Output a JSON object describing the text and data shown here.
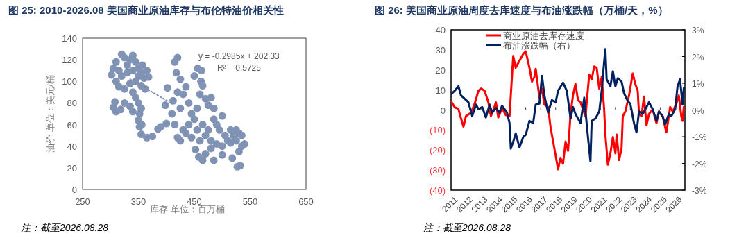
{
  "chart_data": [
    {
      "type": "scatter",
      "title": "图 25: 2010-2026.08 美国商业原油库存与布伦特油价相关性",
      "xlabel": "库存 单位：百万桶",
      "ylabel": "油价 单位：美元/桶",
      "xlim": [
        250,
        650
      ],
      "xticks": [
        250,
        350,
        450,
        550,
        650
      ],
      "ylim": [
        0,
        140
      ],
      "yticks": [
        0,
        20,
        40,
        60,
        80,
        100,
        120,
        140
      ],
      "series": [
        {
          "marker": "circle",
          "color": "#8093b5",
          "x": [
            302,
            305,
            310,
            315,
            320,
            325,
            330,
            335,
            340,
            345,
            350,
            355,
            360,
            365,
            368,
            362,
            355,
            345,
            335,
            325,
            315,
            310,
            320,
            330,
            340,
            350,
            357,
            305,
            310,
            308,
            318,
            325,
            335,
            340,
            345,
            340,
            350,
            355,
            352,
            350,
            352,
            356,
            355,
            365,
            375,
            385,
            390,
            400,
            398,
            402,
            415,
            420,
            418,
            425,
            420,
            412,
            410,
            415,
            420,
            425,
            430,
            425,
            430,
            435,
            440,
            445,
            440,
            435,
            450,
            456,
            463,
            462,
            465,
            460,
            470,
            475,
            480,
            485,
            450,
            455,
            460,
            465,
            470,
            475,
            480,
            485,
            490,
            495,
            500,
            505,
            510,
            515,
            520,
            525,
            530,
            535,
            540,
            535,
            525,
            515,
            500,
            490,
            480,
            485,
            470,
            465,
            458,
            452,
            500,
            518,
            527,
            532,
            530,
            445,
            455
          ],
          "values": [
            106,
            112,
            118,
            110,
            125,
            122,
            115,
            120,
            124,
            118,
            112,
            108,
            103,
            110,
            104,
            93,
            96,
            100,
            98,
            93,
            95,
            100,
            105,
            108,
            110,
            105,
            115,
            76,
            72,
            81,
            74,
            80,
            77,
            72,
            85,
            90,
            80,
            75,
            70,
            64,
            58,
            60,
            51,
            48,
            49,
            56,
            58,
            61,
            78,
            94,
            118,
            122,
            108,
            102,
            90,
            82,
            70,
            60,
            48,
            45,
            55,
            75,
            88,
            95,
            80,
            70,
            60,
            52,
            105,
            112,
            110,
            100,
            96,
            88,
            84,
            78,
            85,
            75,
            65,
            55,
            45,
            60,
            50,
            55,
            45,
            65,
            60,
            55,
            68,
            50,
            45,
            55,
            50,
            55,
            52,
            50,
            42,
            40,
            45,
            43,
            40,
            42,
            38,
            27,
            33,
            27,
            30,
            37,
            32,
            29,
            21,
            22,
            35,
            48,
            75
          ]
        },
        {
          "type": "line",
          "line_style": "dotted",
          "color": "#7f8fb0",
          "x": [
            335,
            405
          ],
          "values": [
            102,
            81
          ]
        }
      ],
      "annotations": [
        "y = -0.2985x + 202.33",
        "R² = 0.5725",
        "注：截至2026.08.28"
      ]
    },
    {
      "type": "line",
      "title": "图 26: 美国商业原油周度去库速度与布油涨跌幅（万桶/天，%）",
      "xlim": [
        "2011-01-01",
        "2026-08-28"
      ],
      "xticks": [
        "2011",
        "2012",
        "2013",
        "2014",
        "2015",
        "2016",
        "2017",
        "2018",
        "2019",
        "2020",
        "2021",
        "2022",
        "2023",
        "2024",
        "2025",
        "2026"
      ],
      "ylim": [
        -40,
        40
      ],
      "yticks": [
        {
          "value": -40,
          "label": "(40)"
        },
        {
          "value": -30,
          "label": "(30)"
        },
        {
          "value": -20,
          "label": "(20)"
        },
        {
          "value": -10,
          "label": "(10)"
        },
        0,
        10,
        20,
        30,
        40
      ],
      "y2lim": [
        -3,
        3
      ],
      "y2ticks": [
        {
          "value": -3,
          "label": "-3%"
        },
        {
          "value": -2,
          "label": "-2%"
        },
        {
          "value": -1,
          "label": "-1%"
        },
        {
          "value": 0,
          "label": "0%"
        },
        {
          "value": 1,
          "label": "1%"
        },
        {
          "value": 2,
          "label": "2%"
        },
        {
          "value": 3,
          "label": "3%"
        }
      ],
      "legend": "top left",
      "series": [
        {
          "name": "商业原油去库存速度",
          "color": "#ff0000",
          "x": [
            "2011-01",
            "2011-04",
            "2011-07",
            "2011-08",
            "2011-11",
            "2012-01",
            "2012-05",
            "2012-08",
            "2012-11",
            "2013-01",
            "2013-04",
            "2013-07",
            "2013-09",
            "2013-11",
            "2014-01",
            "2014-03",
            "2014-06",
            "2014-09",
            "2014-12",
            "2015-01",
            "2015-03",
            "2015-05",
            "2015-08",
            "2015-11",
            "2016-01",
            "2016-04",
            "2016-06",
            "2016-08",
            "2016-09",
            "2016-12",
            "2017-02",
            "2017-04",
            "2017-07",
            "2017-09",
            "2018-01",
            "2018-03",
            "2018-05",
            "2018-07",
            "2018-09",
            "2018-11",
            "2019-01",
            "2019-03",
            "2019-05",
            "2019-07",
            "2019-09",
            "2020-01",
            "2020-04",
            "2020-06",
            "2020-08",
            "2020-10",
            "2020-12",
            "2021-02",
            "2021-04",
            "2021-05",
            "2021-07",
            "2021-09",
            "2021-11",
            "2022-01",
            "2022-02",
            "2022-04",
            "2022-06",
            "2022-07",
            "2022-09",
            "2022-12",
            "2023-03",
            "2023-05",
            "2023-07",
            "2023-08",
            "2023-10",
            "2023-12",
            "2024-02",
            "2024-04",
            "2024-07",
            "2024-10",
            "2024-12",
            "2025-03",
            "2025-06",
            "2025-09",
            "2025-11",
            "2026-02",
            "2026-04",
            "2026-06",
            "2026-07",
            "2026-08"
          ],
          "values": [
            4.4,
            1.3,
            0.6,
            -2,
            -8.3,
            -3,
            -1.4,
            3.2,
            9.6,
            10.7,
            9.6,
            3.8,
            -3,
            -0.2,
            3.8,
            -3.7,
            0.9,
            -2.5,
            -3.1,
            7.3,
            26.9,
            21.1,
            24.6,
            28,
            29.2,
            21.1,
            14.2,
            16.5,
            20.5,
            6.1,
            10.7,
            2.7,
            1.5,
            -8.9,
            -22.7,
            -29.6,
            -23.9,
            -26.8,
            -15.8,
            -20.4,
            -2,
            7.3,
            13,
            5,
            3.8,
            -3.1,
            17.6,
            15.3,
            21.7,
            21.1,
            10.7,
            16.5,
            0.3,
            -12.3,
            -27.3,
            -21.6,
            -13.5,
            -21.6,
            -12.3,
            -25,
            -19.3,
            -3.1,
            -0.8,
            7.3,
            18.2,
            13,
            9.6,
            -2,
            -3.1,
            6.7,
            -7.7,
            -2,
            0.3,
            -6.6,
            -0.8,
            -3.1,
            -11.2,
            1.5,
            -0.8,
            3.2,
            7.3,
            -3.1,
            -5.4,
            1.5
          ]
        },
        {
          "name": "布油涨跌幅（右）",
          "color": "#002060",
          "axis": "y2",
          "x": [
            "2011-01",
            "2011-04",
            "2011-07",
            "2011-09",
            "2011-12",
            "2012-03",
            "2012-06",
            "2012-09",
            "2012-11",
            "2013-02",
            "2013-05",
            "2013-08",
            "2013-10",
            "2014-01",
            "2014-04",
            "2014-06",
            "2014-10",
            "2014-12",
            "2015-01",
            "2015-03",
            "2015-05",
            "2015-08",
            "2015-11",
            "2016-01",
            "2016-04",
            "2016-07",
            "2016-09",
            "2016-12",
            "2017-02",
            "2017-04",
            "2017-07",
            "2017-10",
            "2018-01",
            "2018-03",
            "2018-07",
            "2018-10",
            "2019-01",
            "2019-03",
            "2019-05",
            "2019-09",
            "2019-12",
            "2020-03",
            "2020-05",
            "2020-06",
            "2020-09",
            "2020-12",
            "2021-02",
            "2021-04",
            "2021-05",
            "2021-06",
            "2021-09",
            "2021-11",
            "2022-01",
            "2022-03",
            "2022-06",
            "2022-08",
            "2022-11",
            "2023-01",
            "2023-04",
            "2023-06",
            "2023-08",
            "2023-11",
            "2024-02",
            "2024-04",
            "2024-07",
            "2024-10",
            "2024-12",
            "2025-03",
            "2025-05",
            "2025-08",
            "2025-10",
            "2026-01",
            "2026-03",
            "2026-05",
            "2026-07",
            "2026-08"
          ],
          "values": [
            0.59,
            0.72,
            0.89,
            0.55,
            0.42,
            0.29,
            -0.23,
            0.2,
            0.03,
            0.11,
            -0.28,
            0.2,
            -0.1,
            0.07,
            -0.1,
            0.16,
            -0.1,
            -0.49,
            -1.45,
            -1.19,
            -0.88,
            -1.4,
            -1.01,
            -0.93,
            -0.41,
            -0.49,
            0.2,
            0.24,
            1.28,
            0.55,
            -0.1,
            0.37,
            0.29,
            0.72,
            1.02,
            0.72,
            -0.32,
            0.11,
            -0.15,
            -0.49,
            0.46,
            -1.01,
            -1.92,
            -0.41,
            -0.32,
            -0.06,
            0.72,
            1.8,
            2.28,
            1.15,
            0.89,
            1.45,
            0.89,
            1.19,
            1.06,
            0.63,
            0.33,
            0.24,
            -0.49,
            -0.84,
            -0.06,
            -0.15,
            0.11,
            0.29,
            0.03,
            -0.41,
            -0.06,
            -0.23,
            -0.54,
            -0.15,
            -0.23,
            0.03,
            0.89,
            1.15,
            0.2,
            0.81
          ]
        }
      ],
      "annotations": [
        "注：截至2026.08.28"
      ]
    }
  ]
}
